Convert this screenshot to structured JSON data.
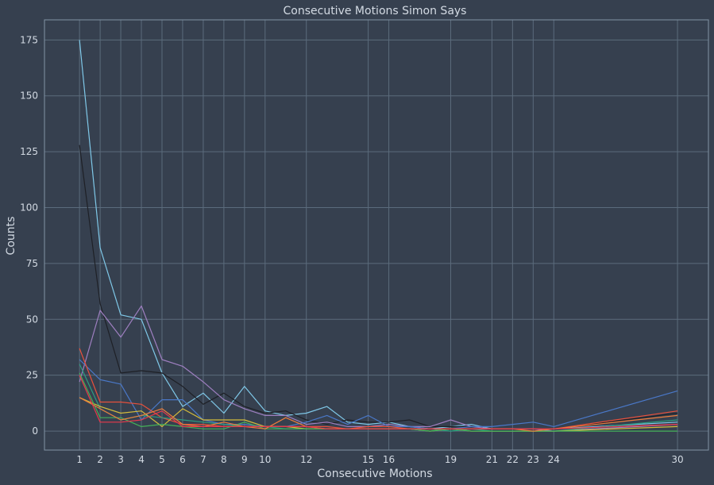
{
  "chart_data": {
    "type": "line",
    "title": "Consecutive Motions Simon Says",
    "xlabel": "Consecutive Motions",
    "ylabel": "Counts",
    "xlim": [
      -0.7,
      31.5
    ],
    "ylim": [
      -8.5,
      184
    ],
    "xticks": [
      1,
      2,
      3,
      4,
      5,
      6,
      7,
      8,
      9,
      10,
      12,
      15,
      16,
      19,
      21,
      22,
      23,
      24,
      30
    ],
    "yticks": [
      0,
      25,
      50,
      75,
      100,
      125,
      150,
      175
    ],
    "grid": true,
    "legend": "none",
    "series": [
      {
        "color": "#7fc8e8",
        "x": [
          1,
          2,
          3,
          4,
          5,
          6,
          7,
          8,
          9,
          10,
          11,
          12,
          13,
          14,
          15,
          16,
          17,
          18,
          19,
          20,
          21,
          22,
          23,
          24,
          30
        ],
        "y": [
          175,
          82,
          52,
          50,
          26,
          11,
          17,
          8,
          20,
          9,
          7,
          8,
          11,
          4,
          3,
          4,
          2,
          1,
          2,
          3,
          1,
          1,
          1,
          1,
          4
        ]
      },
      {
        "color": "#1e2026",
        "x": [
          1,
          2,
          3,
          4,
          5,
          6,
          7,
          8,
          9,
          10,
          11,
          12,
          13,
          14,
          15,
          16,
          17,
          18,
          19,
          20,
          21,
          22,
          23,
          24,
          30
        ],
        "y": [
          128,
          57,
          26,
          27,
          26,
          20,
          12,
          17,
          11,
          8,
          9,
          5,
          3,
          5,
          4,
          4,
          5,
          2,
          2,
          2,
          1,
          1,
          1,
          1,
          8
        ]
      },
      {
        "color": "#9e7fc0",
        "x": [
          1,
          2,
          3,
          4,
          5,
          6,
          7,
          8,
          9,
          10,
          11,
          12,
          13,
          14,
          15,
          16,
          17,
          18,
          19,
          20,
          21,
          22,
          23,
          24,
          30
        ],
        "y": [
          22,
          54,
          42,
          56,
          32,
          29,
          22,
          14,
          10,
          7,
          7,
          3,
          4,
          2,
          2,
          3,
          2,
          2,
          5,
          2,
          1,
          1,
          1,
          0,
          3
        ]
      },
      {
        "color": "#4a78c8",
        "x": [
          1,
          2,
          3,
          4,
          5,
          6,
          7,
          8,
          9,
          10,
          11,
          12,
          13,
          14,
          15,
          16,
          17,
          18,
          19,
          20,
          21,
          22,
          23,
          24,
          30
        ],
        "y": [
          32,
          23,
          21,
          5,
          14,
          14,
          5,
          3,
          3,
          2,
          2,
          4,
          7,
          3,
          7,
          2,
          2,
          1,
          1,
          2,
          2,
          3,
          4,
          2,
          18
        ]
      },
      {
        "color": "#e8503c",
        "x": [
          1,
          2,
          3,
          4,
          5,
          6,
          7,
          8,
          9,
          10,
          11,
          12,
          13,
          14,
          15,
          16,
          17,
          18,
          19,
          20,
          21,
          22,
          23,
          24,
          30
        ],
        "y": [
          37,
          13,
          13,
          12,
          6,
          3,
          3,
          2,
          2,
          2,
          2,
          2,
          2,
          1,
          2,
          2,
          1,
          1,
          1,
          1,
          1,
          1,
          1,
          1,
          9
        ]
      },
      {
        "color": "#2e9c80",
        "x": [
          1,
          2,
          3,
          4,
          5,
          6,
          7,
          8,
          9,
          10,
          11,
          12,
          13,
          14,
          15,
          16,
          17,
          18,
          19,
          20,
          21,
          22,
          23,
          24,
          30
        ],
        "y": [
          30,
          10,
          5,
          7,
          6,
          5,
          4,
          3,
          2,
          2,
          1,
          1,
          1,
          1,
          1,
          1,
          1,
          1,
          0,
          1,
          0,
          0,
          0,
          0,
          5
        ]
      },
      {
        "color": "#d4bc3c",
        "x": [
          1,
          2,
          3,
          4,
          5,
          6,
          7,
          8,
          9,
          10,
          11,
          12,
          13,
          14,
          15,
          16,
          17,
          18,
          19,
          20,
          21,
          22,
          23,
          24,
          30
        ],
        "y": [
          15,
          11,
          8,
          9,
          2,
          10,
          5,
          5,
          5,
          2,
          2,
          1,
          1,
          1,
          1,
          1,
          1,
          0,
          1,
          0,
          0,
          0,
          0,
          0,
          2
        ]
      },
      {
        "color": "#44b058",
        "x": [
          1,
          2,
          3,
          4,
          5,
          6,
          7,
          8,
          9,
          10,
          11,
          12,
          13,
          14,
          15,
          16,
          17,
          18,
          19,
          20,
          21,
          22,
          23,
          24,
          30
        ],
        "y": [
          26,
          6,
          6,
          2,
          3,
          2,
          1,
          1,
          4,
          1,
          1,
          1,
          1,
          1,
          1,
          1,
          1,
          0,
          1,
          0,
          0,
          0,
          0,
          0,
          0
        ]
      },
      {
        "color": "#ec7c3c",
        "x": [
          1,
          2,
          3,
          4,
          5,
          6,
          7,
          8,
          9,
          10,
          11,
          12,
          13,
          14,
          15,
          16,
          17,
          18,
          19,
          20,
          21,
          22,
          23,
          24,
          30
        ],
        "y": [
          15,
          10,
          5,
          7,
          10,
          3,
          2,
          4,
          2,
          1,
          6,
          2,
          1,
          1,
          1,
          1,
          1,
          1,
          1,
          1,
          1,
          1,
          0,
          1,
          7
        ]
      },
      {
        "color": "#e8384c",
        "x": [
          1,
          2,
          3,
          4,
          5,
          6,
          7,
          8,
          9,
          10,
          11,
          12,
          13,
          14,
          15,
          16,
          17,
          18,
          19,
          20,
          21,
          22,
          23,
          24,
          30
        ],
        "y": [
          25,
          4,
          4,
          5,
          9,
          2,
          2,
          2,
          2,
          2,
          2,
          2,
          1,
          1,
          1,
          1,
          1,
          1,
          1,
          1,
          1,
          1,
          1,
          1,
          3
        ]
      }
    ]
  }
}
